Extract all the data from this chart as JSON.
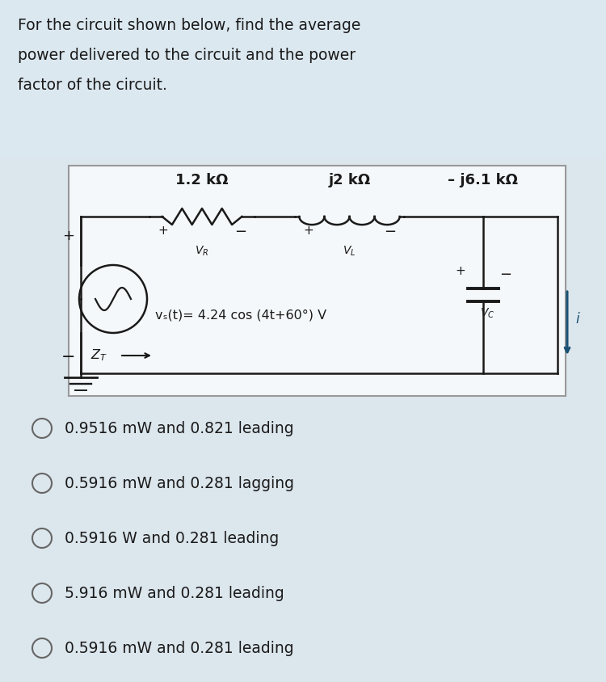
{
  "title_text": "For the circuit shown below, find the average\npower delivered to the circuit and the power\nfactor of the circuit.",
  "bg_color_top": "#dce6ed",
  "bg_color_bottom": "#dce6ed",
  "circuit_bg": "#f5f7f9",
  "circuit_border": "#aaaaaa",
  "options": [
    "0.9516 mW and 0.821 leading",
    "0.5916 mW and 0.281 lagging",
    "0.5916 W and 0.281 leading",
    "5.916 mW and 0.281 leading",
    "0.5916 mW and 0.281 leading"
  ],
  "label_R": "1.2 kΩ",
  "label_L": "j2 kΩ",
  "label_C": "– j6.1 kΩ",
  "vs_label": "vₛ(t)= 4.24 cos (4t+60°) V",
  "wire_color": "#1a1a1a",
  "arrow_color": "#1a5276",
  "text_color": "#1a1a1a",
  "title_fontsize": 13.5,
  "opt_fontsize": 13.5
}
